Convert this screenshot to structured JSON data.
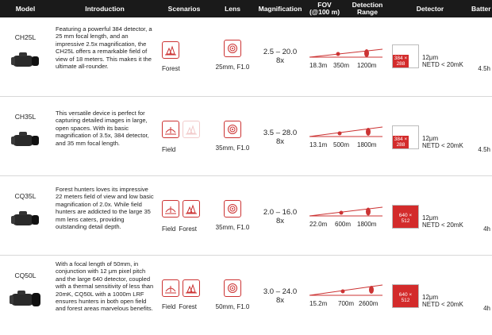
{
  "header": {
    "model": "Model",
    "introduction": "Introduction",
    "scenarios": "Scenarios",
    "lens": "Lens",
    "magnification": "Magnification",
    "fov": "FOV",
    "fov_unit": "(@100 m)",
    "range_1": "Detection",
    "range_2": "Range",
    "detector": "Detector",
    "battery": "Batter"
  },
  "rows": [
    {
      "model": "CH25L",
      "intro": "Featuring a powerful 384 detector, a 25 mm focal length, and an impressive 2.5x magnification, the CH25L offers a remarkable field of view of 18 meters. This makes it the ultimate all-rounder.",
      "scenario_labels": [
        "Forest"
      ],
      "lens": "25mm, F1.0",
      "mag_range": "2.5 – 20.0",
      "mag_zoom": "8x",
      "fov": "18.3m",
      "range_mid": "350m",
      "range_max": "1200m",
      "det_res_1": "384 ×",
      "det_res_2": "288",
      "det_pitch": "12μm",
      "det_netd": "NETD < 20mK",
      "battery": "4.5h"
    },
    {
      "model": "CH35L",
      "intro": "This versatile device is perfect for capturing detailed images in large, open spaces. With its basic magnification of 3.5x, 384 detector, and 35 mm focal length.",
      "scenario_labels": [
        "Field"
      ],
      "lens": "35mm, F1.0",
      "mag_range": "3.5 – 28.0",
      "mag_zoom": "8x",
      "fov": "13.1m",
      "range_mid": "500m",
      "range_max": "1800m",
      "det_res_1": "384 ×",
      "det_res_2": "288",
      "det_pitch": "12μm",
      "det_netd": "NETD < 20mK",
      "battery": "4.5h"
    },
    {
      "model": "CQ35L",
      "intro": "Forest hunters loves its impressive 22 meters field of view and low basic magnification of 2.0x. While field hunters are addicted to the large 35 mm lens caters, providing outstanding detail depth.",
      "scenario_labels": [
        "Field",
        "Forest"
      ],
      "lens": "35mm, F1.0",
      "mag_range": "2.0 – 16.0",
      "mag_zoom": "8x",
      "fov": "22.0m",
      "range_mid": "600m",
      "range_max": "1800m",
      "det_res_1": "640 ×",
      "det_res_2": "512",
      "det_pitch": "12μm",
      "det_netd": "NETD < 20mK",
      "battery": "4h"
    },
    {
      "model": "CQ50L",
      "intro": "With a focal length of 50mm, in conjunction with 12 μm pixel pitch and the large 640 detector, coupled with a thermal sensitivity of less than 20mK, CQ50L with a 1000m LRF ensures hunters in both open field and forest areas marvelous benefits.",
      "scenario_labels": [
        "Field",
        "Forest"
      ],
      "lens": "50mm, F1.0",
      "mag_range": "3.0 – 24.0",
      "mag_zoom": "8x",
      "fov": "15.2m",
      "range_mid": "700m",
      "range_max": "2600m",
      "det_res_1": "640 ×",
      "det_res_2": "512",
      "det_pitch": "12μm",
      "det_netd": "NETD < 20mK",
      "battery": "4h"
    }
  ],
  "colors": {
    "accent": "#d32b2b",
    "header_bg": "#1a1a1a"
  }
}
